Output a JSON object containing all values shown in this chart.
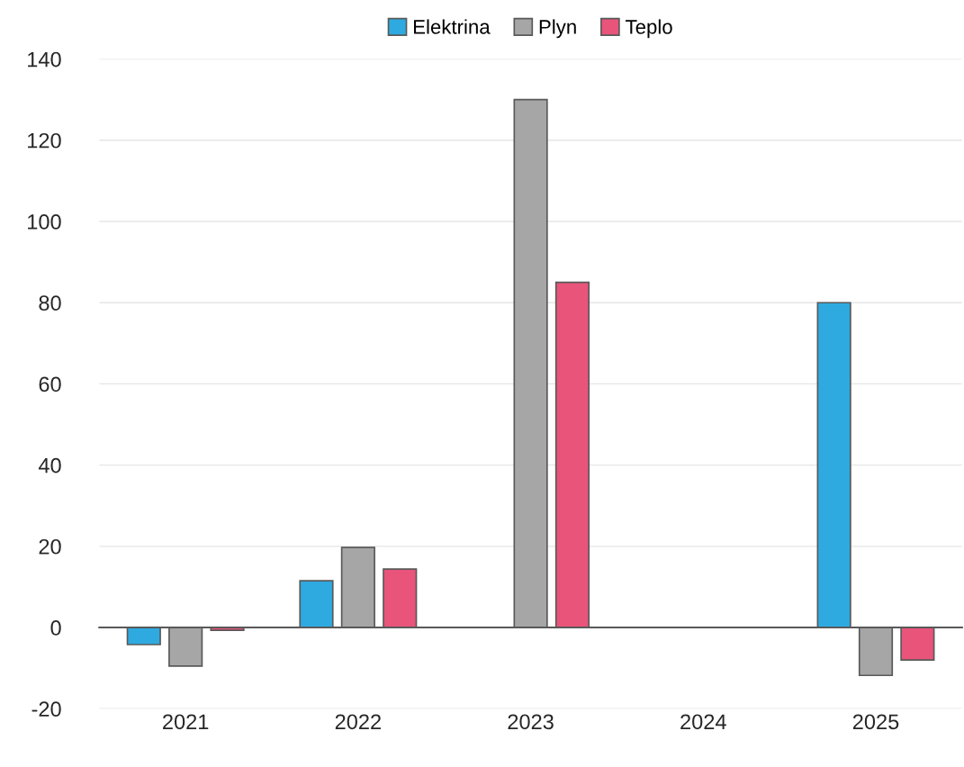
{
  "chart_data": {
    "type": "bar",
    "categories": [
      "2021",
      "2022",
      "2023",
      "2024",
      "2025"
    ],
    "series": [
      {
        "name": "Elektrina",
        "color": "#2eaae1",
        "values": [
          -4.2,
          11.5,
          null,
          null,
          80
        ]
      },
      {
        "name": "Plyn",
        "color": "#a6a6a6",
        "values": [
          -9.5,
          19.7,
          130,
          null,
          -11.8
        ]
      },
      {
        "name": "Teplo",
        "color": "#e8547a",
        "values": [
          -0.7,
          14.4,
          85,
          null,
          -8
        ]
      }
    ],
    "ylim": [
      -20,
      140
    ],
    "yticks": [
      -20,
      0,
      20,
      40,
      60,
      80,
      100,
      120,
      140
    ],
    "grid": "y",
    "legend": "top"
  }
}
